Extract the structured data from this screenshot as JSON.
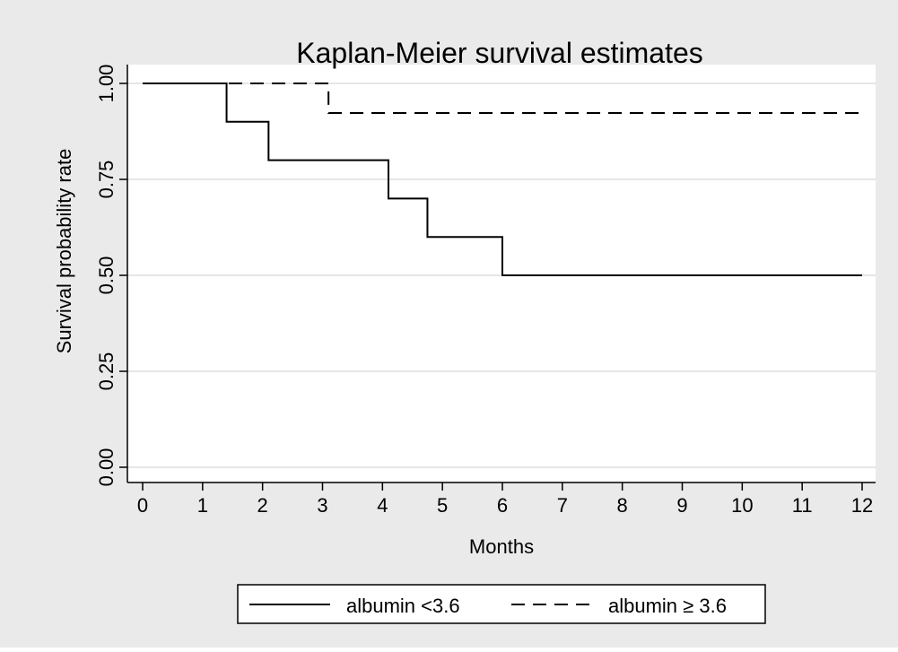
{
  "chart_data": {
    "type": "line",
    "title": "Kaplan-Meier survival estimates",
    "xlabel": "Months",
    "ylabel": "Survival probability rate",
    "xlim": [
      0,
      12
    ],
    "ylim": [
      0,
      1
    ],
    "x_ticks": [
      "0",
      "1",
      "2",
      "3",
      "4",
      "5",
      "6",
      "7",
      "8",
      "9",
      "10",
      "11",
      "12"
    ],
    "y_ticks": [
      "0.00",
      "0.25",
      "0.50",
      "0.75",
      "1.00"
    ],
    "grid": true,
    "legend_position": "bottom",
    "step": true,
    "series": [
      {
        "name": "albumin <3.6",
        "line_style": "solid",
        "x": [
          0,
          1.4,
          2.1,
          4.1,
          4.75,
          6.0,
          12
        ],
        "y": [
          1.0,
          0.9,
          0.8,
          0.7,
          0.6,
          0.5,
          0.5
        ]
      },
      {
        "name": "albumin ≥ 3.6",
        "line_style": "dashed",
        "x": [
          0,
          3.1,
          12
        ],
        "y": [
          1.0,
          0.923,
          0.923
        ]
      }
    ],
    "colors": {
      "background": "#eaeaea",
      "plot_background": "#ffffff",
      "grid": "#e6e6e6",
      "line": "#000000"
    }
  }
}
